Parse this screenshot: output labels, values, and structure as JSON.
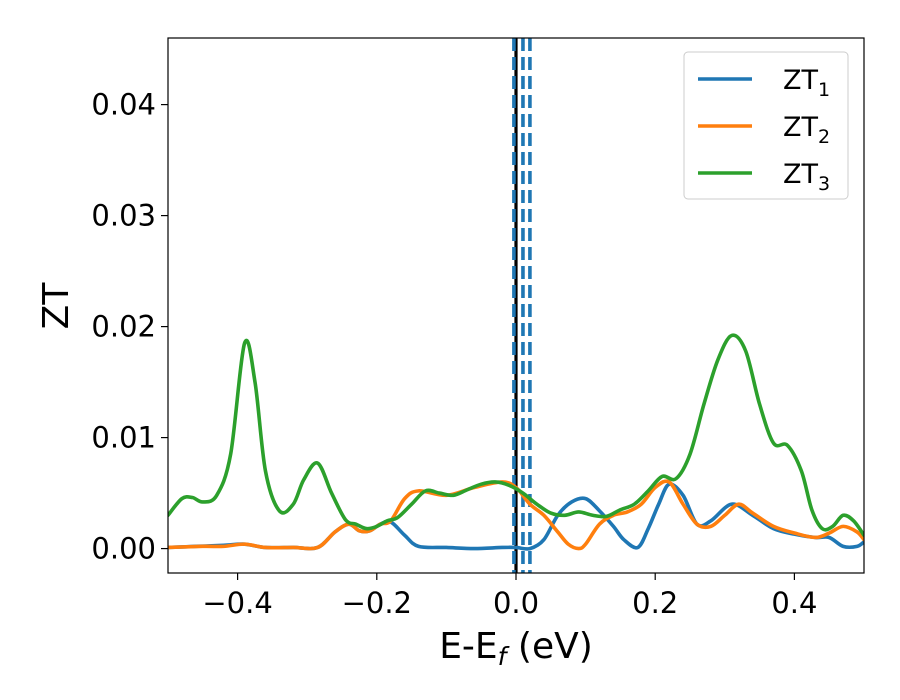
{
  "chart_data": {
    "type": "line",
    "xlabel": "E-E",
    "xlabel_sub": "f",
    "xlabel_unit": " (eV)",
    "ylabel": "ZT",
    "xlim": [
      -0.5,
      0.5
    ],
    "ylim": [
      -0.0022,
      0.046
    ],
    "xticks": [
      -0.4,
      -0.2,
      0.0,
      0.2,
      0.4
    ],
    "xtick_labels": [
      "−0.4",
      "−0.2",
      "0.0",
      "0.2",
      "0.4"
    ],
    "yticks": [
      0.0,
      0.01,
      0.02,
      0.03,
      0.04
    ],
    "ytick_labels": [
      "0.00",
      "0.01",
      "0.02",
      "0.03",
      "0.04"
    ],
    "grid": false,
    "legend_position": "top-right",
    "vertical_lines": [
      {
        "x": 0.0,
        "color": "#000000",
        "style": "solid"
      },
      {
        "x": -0.003,
        "color": "#1f77b4",
        "style": "dashed"
      },
      {
        "x": 0.01,
        "color": "#1f77b4",
        "style": "dashed"
      },
      {
        "x": 0.02,
        "color": "#1f77b4",
        "style": "dashed"
      }
    ],
    "series": [
      {
        "name": "ZT",
        "name_sub": "1",
        "color": "#1f77b4",
        "x": [
          -0.5,
          -0.46,
          -0.42,
          -0.39,
          -0.36,
          -0.32,
          -0.285,
          -0.26,
          -0.24,
          -0.225,
          -0.21,
          -0.195,
          -0.18,
          -0.16,
          -0.14,
          -0.1,
          -0.06,
          -0.02,
          0.0,
          0.02,
          0.04,
          0.06,
          0.08,
          0.1,
          0.12,
          0.14,
          0.155,
          0.175,
          0.19,
          0.205,
          0.22,
          0.24,
          0.26,
          0.28,
          0.31,
          0.34,
          0.37,
          0.4,
          0.43,
          0.45,
          0.47,
          0.49,
          0.5
        ],
        "y": [
          0.0001,
          0.0002,
          0.0003,
          0.0004,
          0.0001,
          0.0001,
          0.0001,
          0.0015,
          0.0022,
          0.0016,
          0.0016,
          0.0022,
          0.0024,
          0.0012,
          0.0002,
          0.0001,
          0.0,
          0.0001,
          0.0001,
          0.0,
          0.0008,
          0.003,
          0.0042,
          0.0045,
          0.0034,
          0.002,
          0.0008,
          0.0001,
          0.0018,
          0.004,
          0.0058,
          0.0048,
          0.0022,
          0.0025,
          0.004,
          0.003,
          0.0018,
          0.0013,
          0.001,
          0.001,
          0.0002,
          0.0002,
          0.0006
        ]
      },
      {
        "name": "ZT",
        "name_sub": "2",
        "color": "#ff7f0e",
        "x": [
          -0.5,
          -0.45,
          -0.42,
          -0.39,
          -0.36,
          -0.32,
          -0.285,
          -0.26,
          -0.24,
          -0.225,
          -0.21,
          -0.195,
          -0.18,
          -0.16,
          -0.14,
          -0.1,
          -0.06,
          -0.02,
          0.0,
          0.02,
          0.04,
          0.06,
          0.075,
          0.09,
          0.1,
          0.12,
          0.14,
          0.16,
          0.18,
          0.2,
          0.22,
          0.24,
          0.26,
          0.28,
          0.3,
          0.32,
          0.34,
          0.37,
          0.4,
          0.43,
          0.45,
          0.47,
          0.49,
          0.5
        ],
        "y": [
          0.0001,
          0.0002,
          0.0002,
          0.0004,
          0.0001,
          0.0001,
          0.0001,
          0.0015,
          0.0022,
          0.0016,
          0.0016,
          0.0022,
          0.0025,
          0.0045,
          0.0052,
          0.0048,
          0.0055,
          0.006,
          0.0055,
          0.004,
          0.003,
          0.0015,
          0.0004,
          0.0,
          0.0004,
          0.0022,
          0.003,
          0.0033,
          0.004,
          0.0055,
          0.006,
          0.004,
          0.0022,
          0.002,
          0.003,
          0.004,
          0.0032,
          0.002,
          0.0014,
          0.001,
          0.0014,
          0.002,
          0.0015,
          0.0008
        ]
      },
      {
        "name": "ZT",
        "name_sub": "3",
        "color": "#2ca02c",
        "x": [
          -0.5,
          -0.48,
          -0.465,
          -0.45,
          -0.43,
          -0.41,
          -0.39,
          -0.375,
          -0.36,
          -0.34,
          -0.32,
          -0.305,
          -0.285,
          -0.265,
          -0.245,
          -0.23,
          -0.215,
          -0.2,
          -0.185,
          -0.17,
          -0.15,
          -0.13,
          -0.11,
          -0.09,
          -0.07,
          -0.05,
          -0.03,
          -0.01,
          0.01,
          0.03,
          0.05,
          0.07,
          0.09,
          0.11,
          0.13,
          0.15,
          0.17,
          0.19,
          0.21,
          0.23,
          0.25,
          0.27,
          0.29,
          0.31,
          0.33,
          0.35,
          0.37,
          0.39,
          0.41,
          0.425,
          0.44,
          0.455,
          0.47,
          0.485,
          0.5
        ],
        "y": [
          0.003,
          0.0045,
          0.0046,
          0.0042,
          0.0048,
          0.0085,
          0.0185,
          0.015,
          0.007,
          0.0034,
          0.004,
          0.0062,
          0.0077,
          0.005,
          0.0026,
          0.0022,
          0.0018,
          0.002,
          0.0025,
          0.0028,
          0.004,
          0.0052,
          0.005,
          0.0048,
          0.0053,
          0.0058,
          0.006,
          0.0057,
          0.005,
          0.004,
          0.0032,
          0.003,
          0.0033,
          0.003,
          0.0029,
          0.0035,
          0.004,
          0.0052,
          0.0065,
          0.0063,
          0.0085,
          0.013,
          0.017,
          0.0192,
          0.0178,
          0.013,
          0.0095,
          0.0093,
          0.007,
          0.0035,
          0.0018,
          0.002,
          0.003,
          0.0025,
          0.0012
        ]
      }
    ]
  }
}
